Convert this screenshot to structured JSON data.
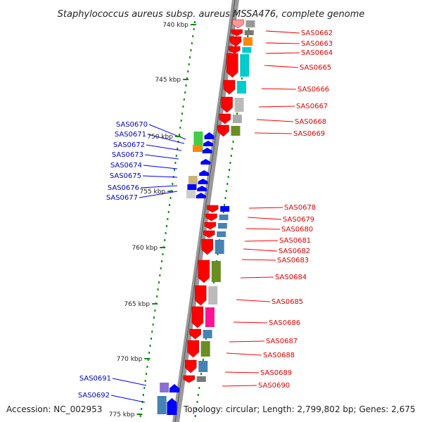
{
  "title": "Staphylococcus aureus subsp. aureus MSSA476, complete genome",
  "footer": {
    "accession": "Accession: NC_002953",
    "stats": "Topology: circular; Length: 2,799,802 bp; Genes: 2,675"
  },
  "colors": {
    "forward_arrow": "#ff0000",
    "reverse_arrow": "#0000ff",
    "tick": "#118811",
    "backbone": "#999999"
  },
  "kbp_labels": [
    "740 kbp",
    "745 kbp",
    "750 kbp",
    "755 kbp",
    "760 kbp",
    "765 kbp",
    "770 kbp",
    "775 kbp"
  ],
  "genes_forward": [
    "SAS0662",
    "SAS0663",
    "SAS0664",
    "SAS0665",
    "SAS0666",
    "SAS0667",
    "SAS0668",
    "SAS0669",
    "SAS0678",
    "SAS0679",
    "SAS0680",
    "SAS0681",
    "SAS0682",
    "SAS0683",
    "SAS0684",
    "SAS0685",
    "SAS0686",
    "SAS0687",
    "SAS0688",
    "SAS0689",
    "SAS0690"
  ],
  "genes_reverse": [
    "SAS0670",
    "SAS0671",
    "SAS0672",
    "SAS0673",
    "SAS0674",
    "SAS0675",
    "SAS0676",
    "SAS0677",
    "SAS0691",
    "SAS0692"
  ]
}
